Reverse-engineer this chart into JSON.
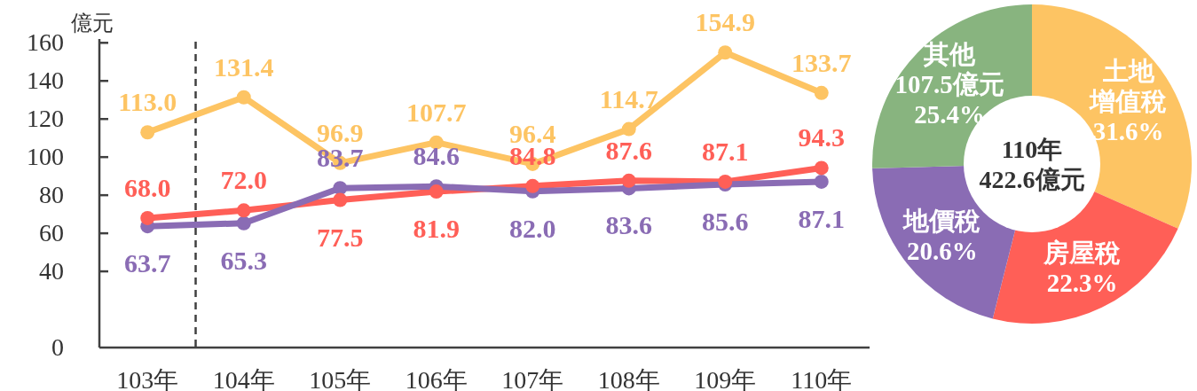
{
  "chart_data": [
    {
      "type": "line",
      "ylabel": "億元",
      "x": [
        103,
        104,
        105,
        106,
        107,
        108,
        109,
        110
      ],
      "xlim": [
        102.5,
        110.5
      ],
      "xticks": [
        {
          "value": 103,
          "label": "103年"
        },
        {
          "value": 104,
          "label": "104年"
        },
        {
          "value": 105,
          "label": "105年"
        },
        {
          "value": 106,
          "label": "106年"
        },
        {
          "value": 107,
          "label": "107年"
        },
        {
          "value": 108,
          "label": "108年"
        },
        {
          "value": 109,
          "label": "109年"
        },
        {
          "value": 110,
          "label": "110年"
        }
      ],
      "ylim": [
        0,
        162
      ],
      "yticks": [
        0,
        40,
        60,
        80,
        100,
        120,
        140,
        160
      ],
      "series": [
        {
          "color": "#fdc463",
          "values": [
            113.0,
            131.4,
            96.9,
            107.7,
            96.4,
            114.7,
            154.9,
            133.7
          ],
          "value_labels": [
            "113.0",
            "131.4",
            "96.9",
            "107.7",
            "96.4",
            "114.7",
            "154.9",
            "133.7"
          ]
        },
        {
          "color": "#ff5f57",
          "values": [
            68.0,
            72.0,
            77.5,
            81.9,
            84.8,
            87.6,
            87.1,
            94.3
          ],
          "value_labels": [
            "68.0",
            "72.0",
            "77.5",
            "81.9",
            "84.8",
            "87.6",
            "87.1",
            "94.3"
          ]
        },
        {
          "color": "#8a6cb4",
          "values": [
            63.7,
            65.3,
            83.7,
            84.6,
            82.0,
            83.6,
            85.6,
            87.1
          ],
          "value_labels": [
            "63.7",
            "65.3",
            "83.7",
            "84.6",
            "82.0",
            "83.6",
            "85.6",
            "87.1"
          ]
        }
      ],
      "marker": "circle",
      "line_style": "solid",
      "ref_lines": [
        {
          "axis": "x",
          "value": 103.5,
          "color": "#404040",
          "line_style": "dashed"
        }
      ]
    },
    {
      "type": "donut",
      "categories": [
        "土地增值稅",
        "房屋稅",
        "地價稅",
        "其他"
      ],
      "values": [
        31.6,
        22.3,
        20.6,
        25.4
      ],
      "colors": [
        "#fdc463",
        "#ff5f57",
        "#8a6cb4",
        "#88b47f"
      ],
      "value_labels": [
        "31.6%",
        "22.3%",
        "20.6%",
        "107.5億元 25.4%"
      ],
      "annotations": [
        "110年",
        "422.6億元"
      ]
    }
  ]
}
